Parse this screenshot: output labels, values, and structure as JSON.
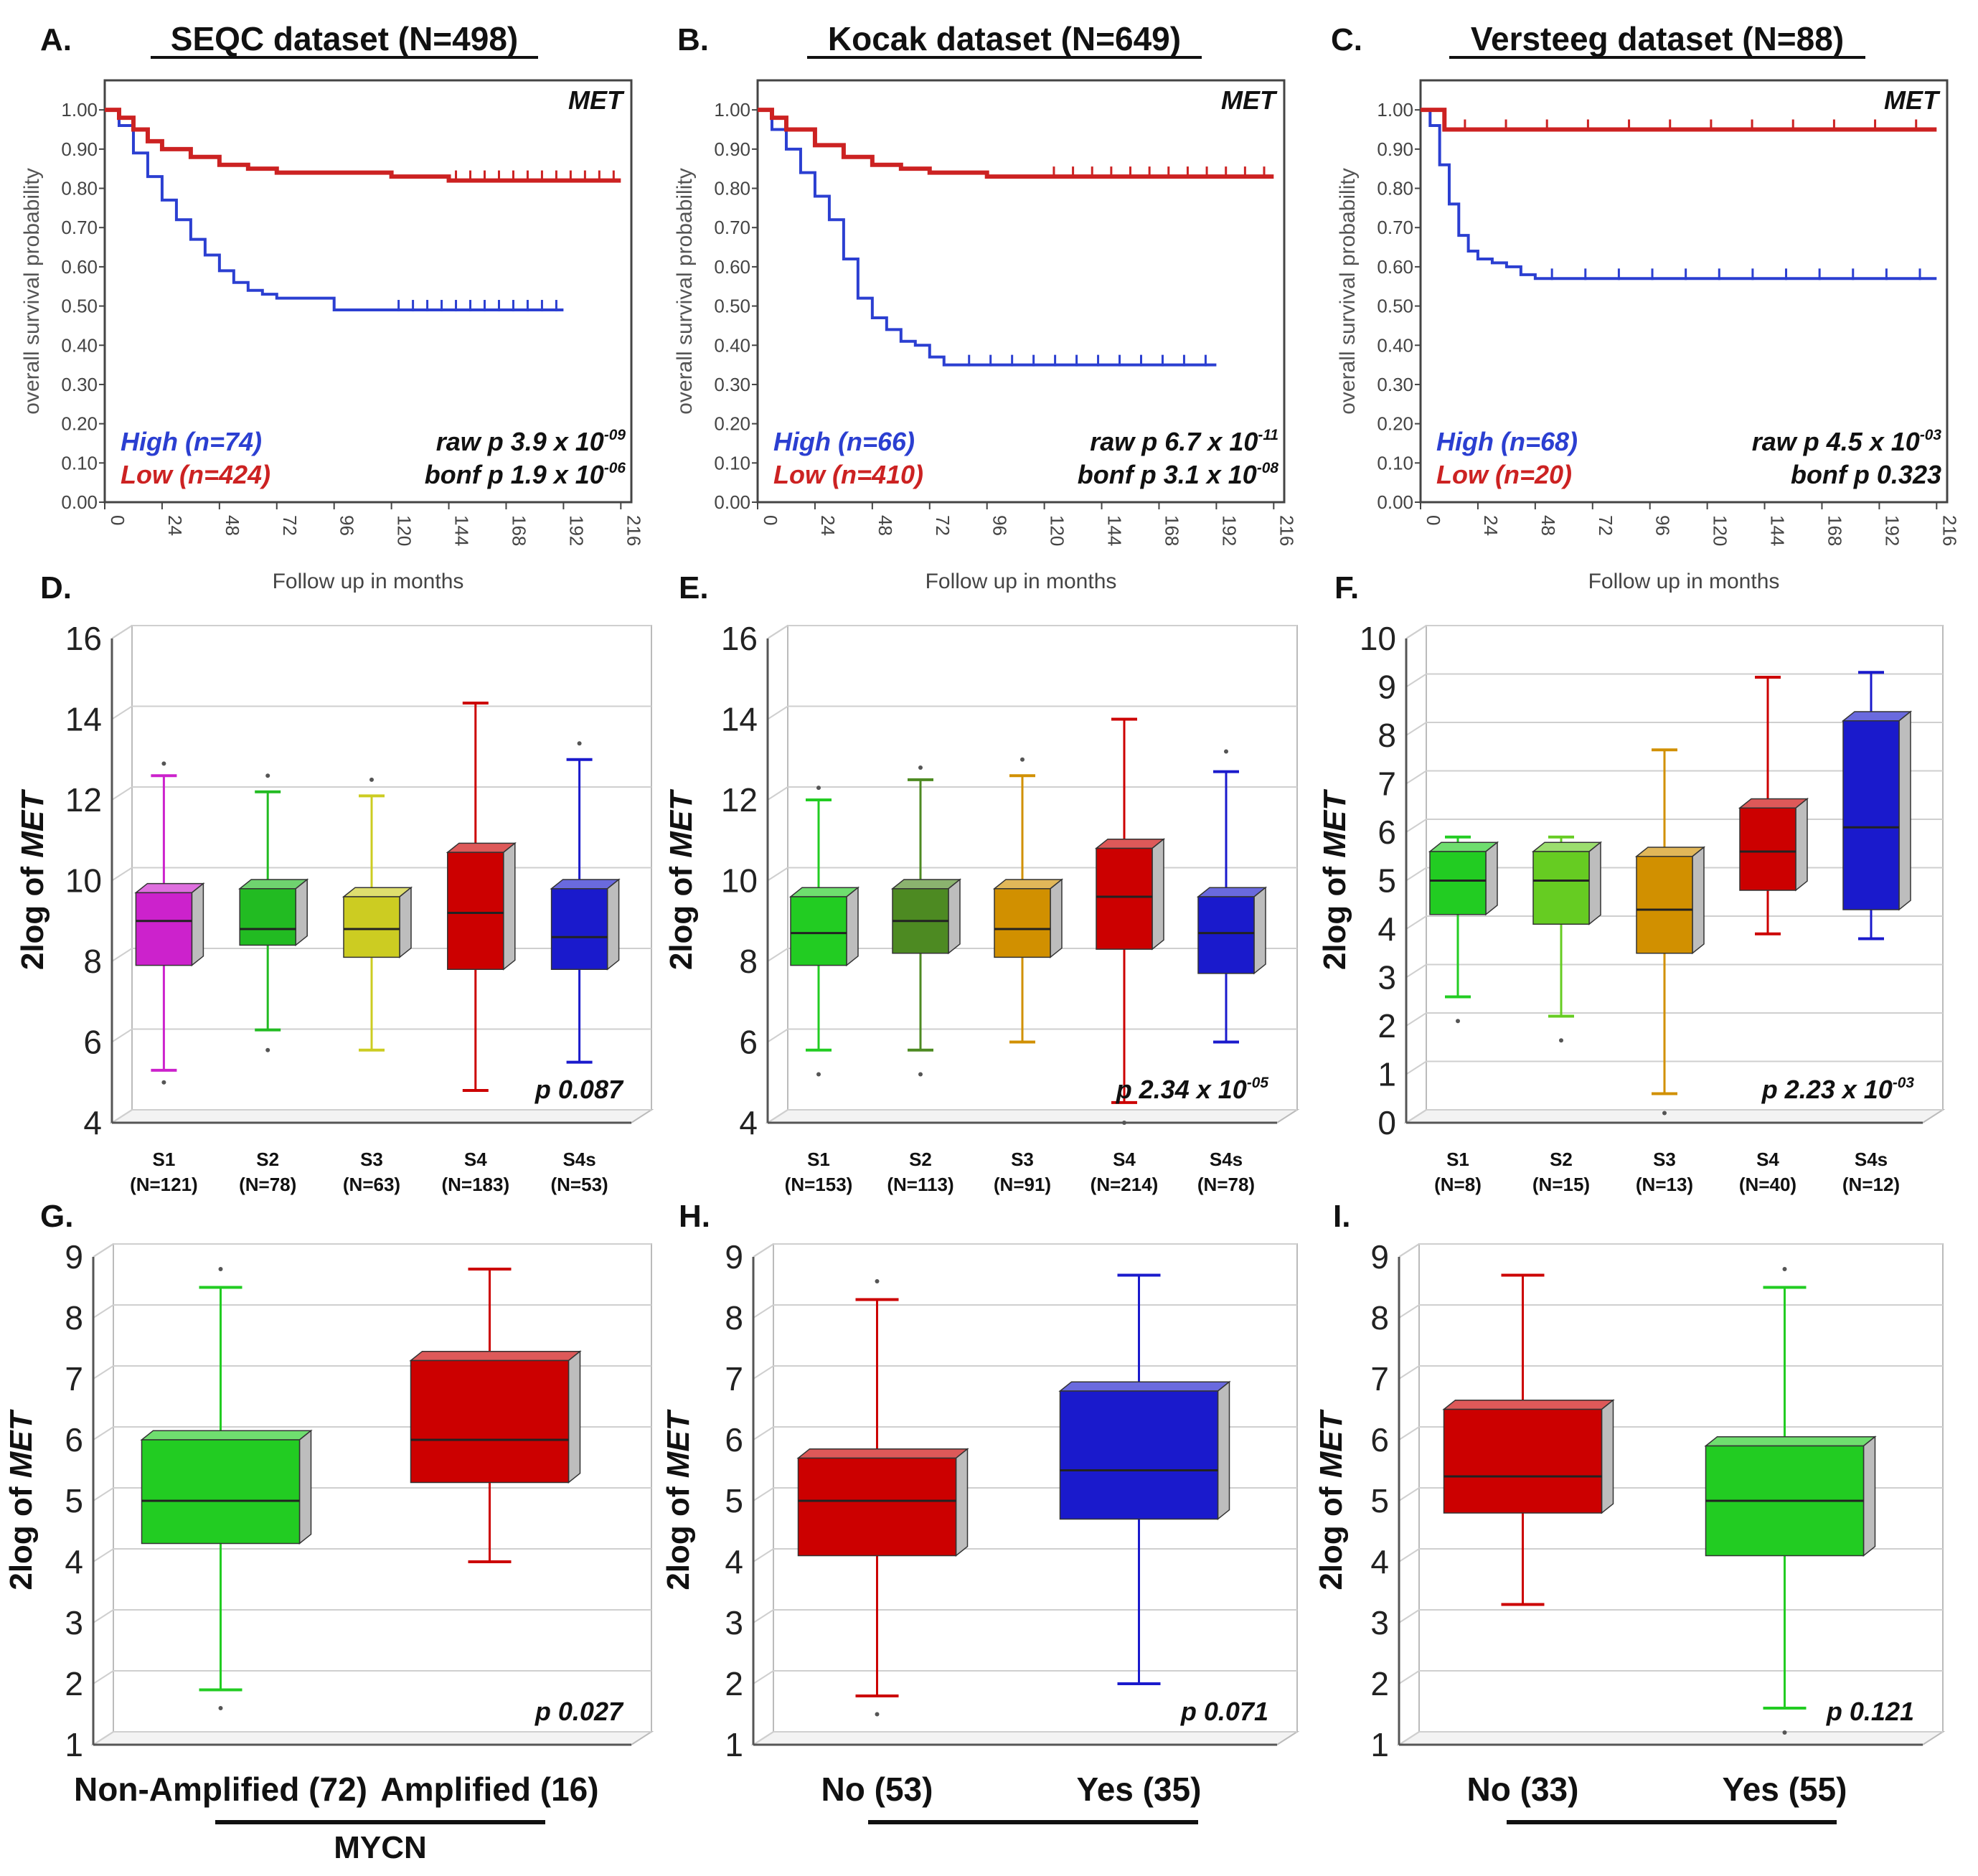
{
  "panels": [
    {
      "type": "km",
      "letter": "A.",
      "title": "SEQC dataset (N=498)",
      "gene": "MET",
      "ylabel": "overall survival probability",
      "xlabel": "Follow up in months",
      "y_ticks": [
        "0.00",
        "0.10",
        "0.20",
        "0.30",
        "0.40",
        "0.50",
        "0.60",
        "0.70",
        "0.80",
        "0.90",
        "1.00"
      ],
      "x_ticks": [
        "0",
        "24",
        "48",
        "72",
        "96",
        "120",
        "144",
        "168",
        "192",
        "216"
      ],
      "legend": [
        {
          "label": "High (n=74)",
          "color": "#2b3fd1"
        },
        {
          "label": "Low (n=424)",
          "color": "#cc2222"
        }
      ],
      "stats": {
        "raw_prefix": "raw p 3.9 x 10",
        "raw_exp": "-09",
        "bonf_prefix": "bonf p 1.9 x 10",
        "bonf_exp": "-06"
      }
    },
    {
      "type": "km",
      "letter": "B.",
      "title": "Kocak dataset (N=649)",
      "gene": "MET",
      "ylabel": "overall survival probability",
      "xlabel": "Follow up in months",
      "y_ticks": [
        "0.00",
        "0.10",
        "0.20",
        "0.30",
        "0.40",
        "0.50",
        "0.60",
        "0.70",
        "0.80",
        "0.90",
        "1.00"
      ],
      "x_ticks": [
        "0",
        "24",
        "48",
        "72",
        "96",
        "120",
        "144",
        "168",
        "192",
        "216"
      ],
      "legend": [
        {
          "label": "High (n=66)",
          "color": "#2b3fd1"
        },
        {
          "label": "Low (n=410)",
          "color": "#cc2222"
        }
      ],
      "stats": {
        "raw_prefix": "raw p 6.7 x 10",
        "raw_exp": "-11",
        "bonf_prefix": "bonf p 3.1 x 10",
        "bonf_exp": "-08"
      }
    },
    {
      "type": "km",
      "letter": "C.",
      "title": "Versteeg dataset (N=88)",
      "gene": "MET",
      "ylabel": "overall survival probability",
      "xlabel": "Follow up in months",
      "y_ticks": [
        "0.00",
        "0.10",
        "0.20",
        "0.30",
        "0.40",
        "0.50",
        "0.60",
        "0.70",
        "0.80",
        "0.90",
        "1.00"
      ],
      "x_ticks": [
        "0",
        "24",
        "48",
        "72",
        "96",
        "120",
        "144",
        "168",
        "192",
        "216"
      ],
      "legend": [
        {
          "label": "High (n=68)",
          "color": "#2b3fd1"
        },
        {
          "label": "Low (n=20)",
          "color": "#cc2222"
        }
      ],
      "stats": {
        "raw_prefix": "raw p 4.5 x 10",
        "raw_exp": "-03",
        "bonf_prefix": "bonf p 0.323",
        "bonf_exp": ""
      }
    },
    {
      "type": "box",
      "letter": "D.",
      "ylabel": "2log of MET",
      "p_prefix": "p 0.087",
      "p_exp": "",
      "y_ticks": [
        "4",
        "6",
        "8",
        "10",
        "12",
        "14",
        "16"
      ],
      "categories": [
        {
          "name": "S1",
          "n": "(N=121)"
        },
        {
          "name": "S2",
          "n": "(N=78)"
        },
        {
          "name": "S3",
          "n": "(N=63)"
        },
        {
          "name": "S4",
          "n": "(N=183)"
        },
        {
          "name": "S4s",
          "n": "(N=53)"
        }
      ]
    },
    {
      "type": "box",
      "letter": "E.",
      "ylabel": "2log of MET",
      "p_prefix": "p 2.34 x 10",
      "p_exp": "-05",
      "y_ticks": [
        "4",
        "6",
        "8",
        "10",
        "12",
        "14",
        "16"
      ],
      "categories": [
        {
          "name": "S1",
          "n": "(N=153)"
        },
        {
          "name": "S2",
          "n": "(N=113)"
        },
        {
          "name": "S3",
          "n": "(N=91)"
        },
        {
          "name": "S4",
          "n": "(N=214)"
        },
        {
          "name": "S4s",
          "n": "(N=78)"
        }
      ]
    },
    {
      "type": "box",
      "letter": "F.",
      "ylabel": "2log of MET",
      "p_prefix": "p 2.23 x 10",
      "p_exp": "-03",
      "y_ticks": [
        "0",
        "1",
        "2",
        "3",
        "4",
        "5",
        "6",
        "7",
        "8",
        "9",
        "10"
      ],
      "categories": [
        {
          "name": "S1",
          "n": "(N=8)"
        },
        {
          "name": "S2",
          "n": "(N=15)"
        },
        {
          "name": "S3",
          "n": "(N=13)"
        },
        {
          "name": "S4",
          "n": "(N=40)"
        },
        {
          "name": "S4s",
          "n": "(N=12)"
        }
      ]
    },
    {
      "type": "box2",
      "letter": "G.",
      "ylabel": "2log of MET",
      "p_prefix": "p 0.027",
      "y_ticks": [
        "1",
        "2",
        "3",
        "4",
        "5",
        "6",
        "7",
        "8",
        "9"
      ],
      "categories": [
        {
          "label": "Non-Amplified (72)"
        },
        {
          "label": "Amplified (16)"
        }
      ],
      "group_label": "MYCN"
    },
    {
      "type": "box2",
      "letter": "H.",
      "ylabel": "2log of MET",
      "p_prefix": "p 0.071",
      "y_ticks": [
        "1",
        "2",
        "3",
        "4",
        "5",
        "6",
        "7",
        "8",
        "9"
      ],
      "categories": [
        {
          "label": "No (53)"
        },
        {
          "label": "Yes (35)"
        }
      ],
      "group_label": ""
    },
    {
      "type": "box2",
      "letter": "I.",
      "ylabel": "2log of MET",
      "p_prefix": "p 0.121",
      "y_ticks": [
        "1",
        "2",
        "3",
        "4",
        "5",
        "6",
        "7",
        "8",
        "9"
      ],
      "categories": [
        {
          "label": "No (33)"
        },
        {
          "label": "Yes (55)"
        }
      ],
      "group_label": ""
    }
  ],
  "chart_data": [
    {
      "type": "line",
      "title": "SEQC dataset (N=498)",
      "xlabel": "Follow up in months",
      "ylabel": "overall survival probability",
      "xlim": [
        0,
        216
      ],
      "ylim": [
        0,
        1
      ],
      "series": [
        {
          "name": "High (n=74)",
          "color": "#2b3fd1",
          "x": [
            0,
            6,
            12,
            18,
            24,
            30,
            36,
            42,
            48,
            54,
            60,
            66,
            72,
            84,
            96,
            120,
            192
          ],
          "y": [
            1.0,
            0.96,
            0.89,
            0.83,
            0.77,
            0.72,
            0.67,
            0.63,
            0.59,
            0.56,
            0.54,
            0.53,
            0.52,
            0.52,
            0.49,
            0.49,
            0.49
          ]
        },
        {
          "name": "Low (n=424)",
          "color": "#cc2222",
          "x": [
            0,
            6,
            12,
            18,
            24,
            36,
            48,
            60,
            72,
            96,
            120,
            144,
            216
          ],
          "y": [
            1.0,
            0.98,
            0.95,
            0.92,
            0.9,
            0.88,
            0.86,
            0.85,
            0.84,
            0.84,
            0.83,
            0.82,
            0.82
          ]
        }
      ]
    },
    {
      "type": "line",
      "title": "Kocak dataset (N=649)",
      "xlabel": "Follow up in months",
      "ylabel": "overall survival probability",
      "xlim": [
        0,
        216
      ],
      "ylim": [
        0,
        1
      ],
      "series": [
        {
          "name": "High (n=66)",
          "color": "#2b3fd1",
          "x": [
            0,
            6,
            12,
            18,
            24,
            30,
            36,
            42,
            48,
            54,
            60,
            66,
            72,
            78,
            84,
            192
          ],
          "y": [
            1.0,
            0.95,
            0.9,
            0.84,
            0.78,
            0.72,
            0.62,
            0.52,
            0.47,
            0.44,
            0.41,
            0.4,
            0.37,
            0.35,
            0.35,
            0.35
          ]
        },
        {
          "name": "Low (n=410)",
          "color": "#cc2222",
          "x": [
            0,
            6,
            12,
            24,
            36,
            48,
            60,
            72,
            96,
            120,
            216
          ],
          "y": [
            1.0,
            0.98,
            0.95,
            0.91,
            0.88,
            0.86,
            0.85,
            0.84,
            0.83,
            0.83,
            0.83
          ]
        }
      ]
    },
    {
      "type": "line",
      "title": "Versteeg dataset (N=88)",
      "xlabel": "Follow up in months",
      "ylabel": "overall survival probability",
      "xlim": [
        0,
        216
      ],
      "ylim": [
        0,
        1
      ],
      "series": [
        {
          "name": "High (n=68)",
          "color": "#2b3fd1",
          "x": [
            0,
            4,
            8,
            12,
            16,
            20,
            24,
            30,
            36,
            42,
            48,
            216
          ],
          "y": [
            1.0,
            0.96,
            0.86,
            0.76,
            0.68,
            0.64,
            0.62,
            0.61,
            0.6,
            0.58,
            0.57,
            0.57
          ]
        },
        {
          "name": "Low (n=20)",
          "color": "#cc2222",
          "x": [
            0,
            10,
            216
          ],
          "y": [
            1.0,
            0.95,
            0.95
          ]
        }
      ]
    },
    {
      "type": "box",
      "title": "D",
      "ylabel": "2log of MET",
      "ylim": [
        4,
        16
      ],
      "p_value": "0.087",
      "categories": [
        "S1 (N=121)",
        "S2 (N=78)",
        "S3 (N=63)",
        "S4 (N=183)",
        "S4s (N=53)"
      ],
      "series": [
        {
          "name": "S1",
          "color": "#cc22cc",
          "whisker_low": 5.3,
          "q1": 7.9,
          "median": 9.0,
          "q3": 9.7,
          "whisker_high": 12.6,
          "outliers": [
            12.9,
            5.0
          ]
        },
        {
          "name": "S2",
          "color": "#22bb22",
          "whisker_low": 6.3,
          "q1": 8.4,
          "median": 8.8,
          "q3": 9.8,
          "whisker_high": 12.2,
          "outliers": [
            12.6,
            5.8
          ]
        },
        {
          "name": "S3",
          "color": "#cccc22",
          "whisker_low": 5.8,
          "q1": 8.1,
          "median": 8.8,
          "q3": 9.6,
          "whisker_high": 12.1,
          "outliers": [
            12.5
          ]
        },
        {
          "name": "S4",
          "color": "#cc0000",
          "whisker_low": 4.8,
          "q1": 7.8,
          "median": 9.2,
          "q3": 10.7,
          "whisker_high": 14.4,
          "outliers": []
        },
        {
          "name": "S4s",
          "color": "#1a1acc",
          "whisker_low": 5.5,
          "q1": 7.8,
          "median": 8.6,
          "q3": 9.8,
          "whisker_high": 13.0,
          "outliers": [
            13.4
          ]
        }
      ]
    },
    {
      "type": "box",
      "title": "E",
      "ylabel": "2log of MET",
      "ylim": [
        4,
        16
      ],
      "p_value": "2.34 x 10^-05",
      "categories": [
        "S1 (N=153)",
        "S2 (N=113)",
        "S3 (N=91)",
        "S4 (N=214)",
        "S4s (N=78)"
      ],
      "series": [
        {
          "name": "S1",
          "color": "#22cc22",
          "whisker_low": 5.8,
          "q1": 7.9,
          "median": 8.7,
          "q3": 9.6,
          "whisker_high": 12.0,
          "outliers": [
            12.3,
            5.2
          ]
        },
        {
          "name": "S2",
          "color": "#4d8a22",
          "whisker_low": 5.8,
          "q1": 8.2,
          "median": 9.0,
          "q3": 9.8,
          "whisker_high": 12.5,
          "outliers": [
            12.8,
            5.2
          ]
        },
        {
          "name": "S3",
          "color": "#d19000",
          "whisker_low": 6.0,
          "q1": 8.1,
          "median": 8.8,
          "q3": 9.8,
          "whisker_high": 12.6,
          "outliers": [
            13.0
          ]
        },
        {
          "name": "S4",
          "color": "#cc0000",
          "whisker_low": 4.5,
          "q1": 8.3,
          "median": 9.6,
          "q3": 10.8,
          "whisker_high": 14.0,
          "outliers": [
            4.0
          ]
        },
        {
          "name": "S4s",
          "color": "#1a1acc",
          "whisker_low": 6.0,
          "q1": 7.7,
          "median": 8.7,
          "q3": 9.6,
          "whisker_high": 12.7,
          "outliers": [
            13.2
          ]
        }
      ]
    },
    {
      "type": "box",
      "title": "F",
      "ylabel": "2log of MET",
      "ylim": [
        0,
        10
      ],
      "p_value": "2.23 x 10^-03",
      "categories": [
        "S1 (N=8)",
        "S2 (N=15)",
        "S3 (N=13)",
        "S4 (N=40)",
        "S4s (N=12)"
      ],
      "series": [
        {
          "name": "S1",
          "color": "#22cc22",
          "whisker_low": 2.6,
          "q1": 4.3,
          "median": 5.0,
          "q3": 5.6,
          "whisker_high": 5.9,
          "outliers": [
            2.1
          ]
        },
        {
          "name": "S2",
          "color": "#66cc22",
          "whisker_low": 2.2,
          "q1": 4.1,
          "median": 5.0,
          "q3": 5.6,
          "whisker_high": 5.9,
          "outliers": [
            1.7
          ]
        },
        {
          "name": "S3",
          "color": "#d19000",
          "whisker_low": 0.6,
          "q1": 3.5,
          "median": 4.4,
          "q3": 5.5,
          "whisker_high": 7.7,
          "outliers": [
            0.2
          ]
        },
        {
          "name": "S4",
          "color": "#cc0000",
          "whisker_low": 3.9,
          "q1": 4.8,
          "median": 5.6,
          "q3": 6.5,
          "whisker_high": 9.2,
          "outliers": []
        },
        {
          "name": "S4s",
          "color": "#1a1acc",
          "whisker_low": 3.8,
          "q1": 4.4,
          "median": 6.1,
          "q3": 8.3,
          "whisker_high": 9.3,
          "outliers": []
        }
      ]
    },
    {
      "type": "box",
      "title": "G",
      "ylabel": "2log of MET",
      "ylim": [
        1,
        9
      ],
      "p_value": "0.027",
      "group": "MYCN",
      "categories": [
        "Non-Amplified (72)",
        "Amplified (16)"
      ],
      "series": [
        {
          "name": "Non-Amplified",
          "color": "#22cc22",
          "whisker_low": 1.9,
          "q1": 4.3,
          "median": 5.0,
          "q3": 6.0,
          "whisker_high": 8.5,
          "outliers": [
            8.8,
            1.6
          ]
        },
        {
          "name": "Amplified",
          "color": "#cc0000",
          "whisker_low": 4.0,
          "q1": 5.3,
          "median": 6.0,
          "q3": 7.3,
          "whisker_high": 8.8,
          "outliers": []
        }
      ]
    },
    {
      "type": "box",
      "title": "H",
      "ylabel": "2log of MET",
      "ylim": [
        1,
        9
      ],
      "p_value": "0.071",
      "categories": [
        "No (53)",
        "Yes (35)"
      ],
      "series": [
        {
          "name": "No",
          "color": "#cc0000",
          "whisker_low": 1.8,
          "q1": 4.1,
          "median": 5.0,
          "q3": 5.7,
          "whisker_high": 8.3,
          "outliers": [
            8.6,
            1.5
          ]
        },
        {
          "name": "Yes",
          "color": "#1a1acc",
          "whisker_low": 2.0,
          "q1": 4.7,
          "median": 5.5,
          "q3": 6.8,
          "whisker_high": 8.7,
          "outliers": []
        }
      ]
    },
    {
      "type": "box",
      "title": "I",
      "ylabel": "2log of MET",
      "ylim": [
        1,
        9
      ],
      "p_value": "0.121",
      "categories": [
        "No (33)",
        "Yes (55)"
      ],
      "series": [
        {
          "name": "No",
          "color": "#cc0000",
          "whisker_low": 3.3,
          "q1": 4.8,
          "median": 5.4,
          "q3": 6.5,
          "whisker_high": 8.7,
          "outliers": []
        },
        {
          "name": "Yes",
          "color": "#22cc22",
          "whisker_low": 1.6,
          "q1": 4.1,
          "median": 5.0,
          "q3": 5.9,
          "whisker_high": 8.5,
          "outliers": [
            8.8,
            1.2
          ]
        }
      ]
    }
  ]
}
